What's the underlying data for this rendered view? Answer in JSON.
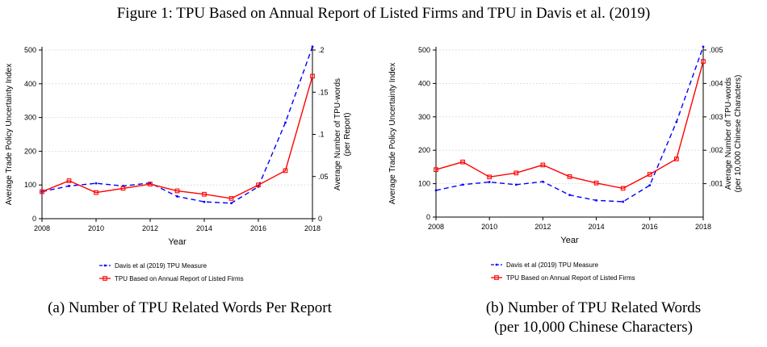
{
  "figure_title": "Figure 1: TPU Based on Annual Report of Listed Firms and TPU in Davis et al. (2019)",
  "colors": {
    "davis": "#0000ff",
    "tpu": "#ff0000",
    "axis": "#000000",
    "grid": "#d9d9d9"
  },
  "chart_data": [
    {
      "type": "line",
      "caption_lines": [
        "(a) Number of TPU Related Words Per Report"
      ],
      "xlabel": "Year",
      "ylabel_left": "Average Trade Policy Uncertainty Index",
      "ylabel_right_lines": [
        "Average Number of TPU-words",
        "(per Report)"
      ],
      "x_ticks": [
        2008,
        2010,
        2012,
        2014,
        2016,
        2018
      ],
      "xlim": [
        2008,
        2018
      ],
      "ylim_left": [
        0,
        500
      ],
      "yticks_left": [
        0,
        100,
        200,
        300,
        400,
        500
      ],
      "ylim_right": [
        0,
        0.2
      ],
      "yticks_right": [
        0,
        0.05,
        0.1,
        0.15,
        0.2
      ],
      "yticks_right_labels": [
        "0",
        ".05",
        ".1",
        ".15",
        ".2"
      ],
      "grid": true,
      "legend_position": "bottom",
      "x": [
        2008,
        2009,
        2010,
        2011,
        2012,
        2013,
        2014,
        2015,
        2016,
        2017,
        2018
      ],
      "series": [
        {
          "name": "Davis et al (2019) TPU Measure",
          "axis": "left",
          "style": "dashed",
          "marker": "dot",
          "values": [
            80,
            97,
            105,
            97,
            106,
            66,
            50,
            46,
            95,
            285,
            510
          ]
        },
        {
          "name": "TPU Based on Annual Report of Listed Firms",
          "axis": "right",
          "style": "solid",
          "marker": "square",
          "values": [
            0.032,
            0.045,
            0.031,
            0.036,
            0.041,
            0.033,
            0.029,
            0.024,
            0.04,
            0.057,
            0.169
          ]
        }
      ]
    },
    {
      "type": "line",
      "caption_lines": [
        "(b) Number of TPU Related Words",
        "(per 10,000 Chinese Characters)"
      ],
      "xlabel": "Year",
      "ylabel_left": "Average Trade Policy Uncertainty Index",
      "ylabel_right_lines": [
        "Average Number of TPU-words",
        "(per 10,000 Chinese Characters)"
      ],
      "x_ticks": [
        2008,
        2010,
        2012,
        2014,
        2016,
        2018
      ],
      "xlim": [
        2008,
        2018
      ],
      "ylim_left": [
        0,
        500
      ],
      "yticks_left": [
        0,
        100,
        200,
        300,
        400,
        500
      ],
      "ylim_right": [
        0,
        0.005
      ],
      "yticks_right": [
        0.001,
        0.002,
        0.003,
        0.004,
        0.005
      ],
      "yticks_right_labels": [
        ".001",
        ".002",
        ".003",
        ".004",
        ".005"
      ],
      "grid": true,
      "legend_position": "bottom",
      "x": [
        2008,
        2009,
        2010,
        2011,
        2012,
        2013,
        2014,
        2015,
        2016,
        2017,
        2018
      ],
      "series": [
        {
          "name": "Davis et al (2019) TPU Measure",
          "axis": "left",
          "style": "dashed",
          "marker": "dot",
          "values": [
            80,
            97,
            105,
            97,
            106,
            66,
            50,
            46,
            95,
            285,
            510
          ]
        },
        {
          "name": "TPU Based on Annual Report of Listed Firms",
          "axis": "right",
          "style": "solid",
          "marker": "square",
          "values": [
            0.00142,
            0.00165,
            0.0012,
            0.00132,
            0.00156,
            0.00121,
            0.00102,
            0.00086,
            0.00128,
            0.00174,
            0.00466
          ]
        }
      ]
    }
  ]
}
